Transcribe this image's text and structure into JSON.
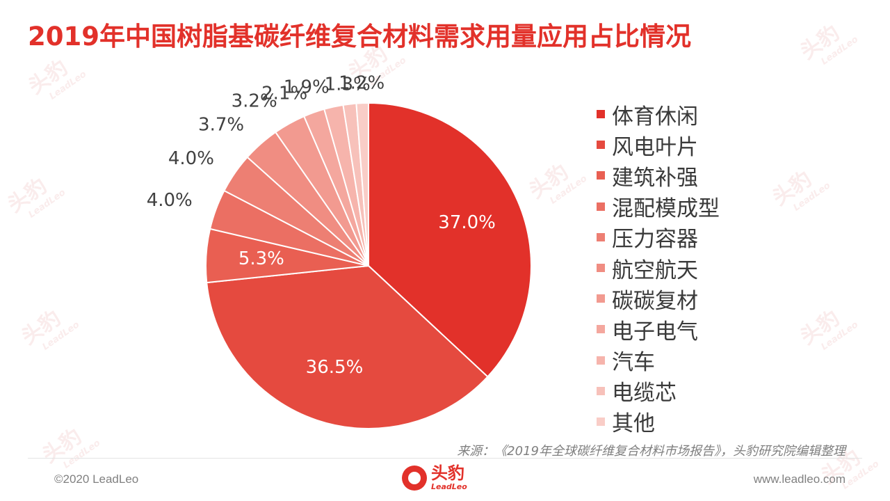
{
  "title": "2019年中国树脂基碳纤维复合材料需求用量应用占比情况",
  "chart_data": {
    "type": "pie",
    "categories": [
      "体育休闲",
      "风电叶片",
      "建筑补强",
      "混配模成型",
      "压力容器",
      "航空航天",
      "碳碳复材",
      "电子电气",
      "汽车",
      "电缆芯",
      "其他"
    ],
    "values": [
      37.0,
      36.5,
      5.3,
      4.0,
      4.0,
      3.7,
      3.2,
      2.1,
      1.9,
      1.3,
      1.2
    ],
    "value_labels": [
      "37.0%",
      "36.5%",
      "5.3%",
      "4.0%",
      "4.0%",
      "3.7%",
      "3.2%",
      "2.1%",
      "1.9%",
      "1.3%",
      "1.2%"
    ],
    "colors": [
      "#e2312a",
      "#e54a3f",
      "#e95f52",
      "#eb6f63",
      "#ed7f73",
      "#f08d82",
      "#f29a90",
      "#f4a79e",
      "#f6b4ac",
      "#f7c1ba",
      "#f9cdc7"
    ],
    "legend_position": "right"
  },
  "footer": {
    "source": "来源：《2019年全球碳纤维复合材料市场报告》，头豹研究院编辑整理",
    "copyright": "©2020 LeadLeo",
    "website": "www.leadleo.com",
    "logo_cn": "头豹",
    "logo_en": "LeadLeo"
  },
  "watermark": {
    "cn": "头豹",
    "en": "LeadLeo"
  }
}
